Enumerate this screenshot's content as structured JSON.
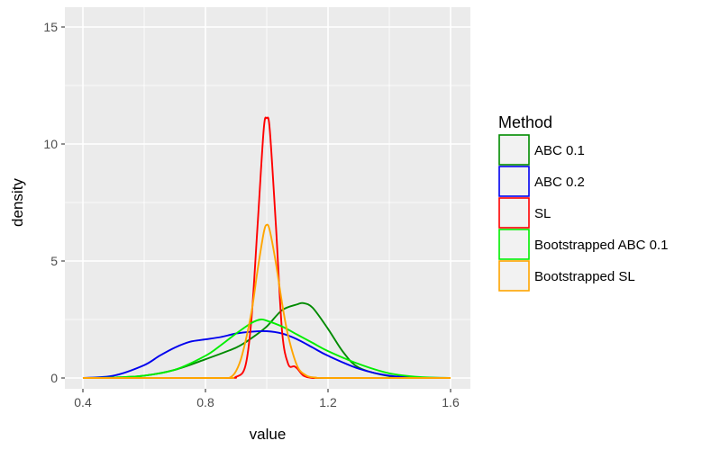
{
  "chart_data": {
    "type": "line",
    "xlabel": "value",
    "ylabel": "density",
    "xlim": [
      0.4,
      1.6
    ],
    "ylim": [
      0,
      15
    ],
    "x_ticks": [
      "0.4",
      "0.8",
      "1.2",
      "1.6"
    ],
    "y_ticks": [
      "0",
      "5",
      "10",
      "15"
    ],
    "grid": true,
    "legend": {
      "title": "Method",
      "position": "right"
    },
    "series": [
      {
        "name": "ABC 0.1",
        "color": "#008B00",
        "x": [
          0.4,
          0.5,
          0.6,
          0.7,
          0.8,
          0.9,
          0.95,
          1.0,
          1.05,
          1.1,
          1.12,
          1.15,
          1.2,
          1.25,
          1.3,
          1.4,
          1.5,
          1.6
        ],
        "y": [
          0,
          0.02,
          0.1,
          0.35,
          0.8,
          1.3,
          1.7,
          2.2,
          2.9,
          3.15,
          3.2,
          3.0,
          2.1,
          1.1,
          0.45,
          0.08,
          0.01,
          0
        ]
      },
      {
        "name": "ABC 0.2",
        "color": "#0000EE",
        "x": [
          0.4,
          0.5,
          0.6,
          0.65,
          0.7,
          0.75,
          0.8,
          0.85,
          0.9,
          0.95,
          1.0,
          1.05,
          1.1,
          1.15,
          1.2,
          1.3,
          1.4,
          1.5,
          1.6
        ],
        "y": [
          0,
          0.1,
          0.55,
          0.95,
          1.3,
          1.55,
          1.65,
          1.75,
          1.9,
          1.98,
          2.0,
          1.9,
          1.65,
          1.3,
          0.95,
          0.4,
          0.1,
          0.02,
          0
        ]
      },
      {
        "name": "SL",
        "color": "#FF0000",
        "x": [
          0.4,
          0.85,
          0.9,
          0.93,
          0.95,
          0.97,
          0.99,
          1.0,
          1.01,
          1.03,
          1.05,
          1.07,
          1.09,
          1.1,
          1.12,
          1.15,
          1.2,
          1.6
        ],
        "y": [
          0,
          0,
          0.05,
          0.5,
          2.5,
          6.5,
          10.6,
          11.1,
          10.6,
          6.5,
          2.0,
          0.6,
          0.5,
          0.4,
          0.1,
          0,
          0,
          0
        ]
      },
      {
        "name": "Bootstrapped ABC 0.1",
        "color": "#00EE00",
        "x": [
          0.4,
          0.5,
          0.6,
          0.7,
          0.8,
          0.85,
          0.9,
          0.95,
          0.98,
          1.0,
          1.05,
          1.1,
          1.15,
          1.2,
          1.3,
          1.4,
          1.5,
          1.6
        ],
        "y": [
          0,
          0.02,
          0.1,
          0.35,
          0.95,
          1.4,
          1.9,
          2.35,
          2.5,
          2.45,
          2.2,
          1.85,
          1.5,
          1.15,
          0.6,
          0.2,
          0.04,
          0
        ]
      },
      {
        "name": "Bootstrapped SL",
        "color": "#FFA500",
        "x": [
          0.4,
          0.85,
          0.88,
          0.9,
          0.92,
          0.95,
          0.97,
          0.99,
          1.0,
          1.01,
          1.03,
          1.05,
          1.07,
          1.1,
          1.13,
          1.16,
          1.2,
          1.6
        ],
        "y": [
          0,
          0,
          0.02,
          0.3,
          1.0,
          2.8,
          4.6,
          6.2,
          6.55,
          6.3,
          4.9,
          3.2,
          1.8,
          0.5,
          0.1,
          0.02,
          0,
          0
        ]
      }
    ]
  }
}
